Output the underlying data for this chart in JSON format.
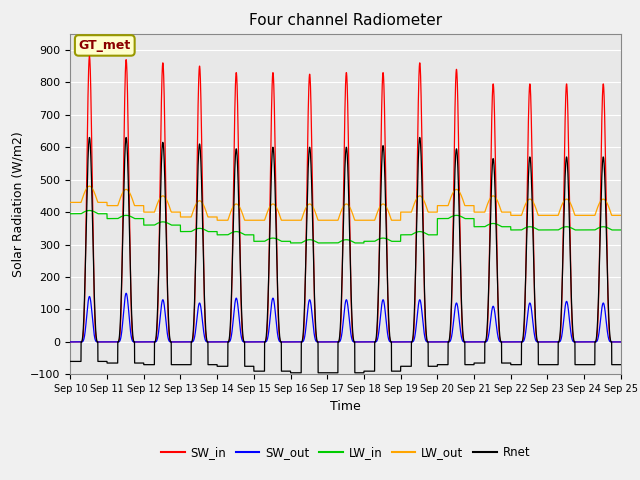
{
  "title": "Four channel Radiometer",
  "xlabel": "Time",
  "ylabel": "Solar Radiation (W/m2)",
  "ylim": [
    -100,
    950
  ],
  "yticks": [
    -100,
    0,
    100,
    200,
    300,
    400,
    500,
    600,
    700,
    800,
    900
  ],
  "num_days": 15,
  "xtick_labels": [
    "Sep 10",
    "Sep 11",
    "Sep 12",
    "Sep 13",
    "Sep 14",
    "Sep 15",
    "Sep 16",
    "Sep 17",
    "Sep 18",
    "Sep 19",
    "Sep 20",
    "Sep 21",
    "Sep 22",
    "Sep 23",
    "Sep 24",
    "Sep 25"
  ],
  "colors": {
    "SW_in": "#ff0000",
    "SW_out": "#0000ff",
    "LW_in": "#00cc00",
    "LW_out": "#ffa500",
    "Rnet": "#000000"
  },
  "annotation_text": "GT_met",
  "annotation_color": "#8B0000",
  "annotation_bg": "#ffffcc",
  "annotation_border": "#999900",
  "bg_color": "#e8e8e8",
  "grid_color": "#ffffff",
  "SW_in_peaks": [
    880,
    870,
    860,
    850,
    830,
    830,
    825,
    830,
    830,
    860,
    840,
    795,
    795,
    795,
    795
  ],
  "SW_out_peaks": [
    140,
    150,
    130,
    120,
    135,
    135,
    130,
    130,
    130,
    130,
    120,
    110,
    120,
    125,
    120
  ],
  "LW_in_base": [
    395,
    380,
    360,
    340,
    330,
    310,
    305,
    305,
    310,
    330,
    380,
    355,
    345,
    345,
    345
  ],
  "LW_out_base": [
    430,
    420,
    400,
    385,
    375,
    375,
    375,
    375,
    375,
    400,
    420,
    400,
    390,
    390,
    390
  ],
  "LW_out_day_peak": [
    50,
    50,
    50,
    50,
    50,
    50,
    50,
    50,
    50,
    50,
    50,
    50,
    50,
    50,
    50
  ],
  "Rnet_peaks": [
    630,
    630,
    615,
    610,
    595,
    600,
    600,
    600,
    605,
    630,
    595,
    565,
    570,
    570,
    570
  ],
  "Rnet_night": [
    -60,
    -65,
    -70,
    -70,
    -75,
    -90,
    -95,
    -95,
    -90,
    -75,
    -70,
    -65,
    -70,
    -70,
    -70
  ]
}
